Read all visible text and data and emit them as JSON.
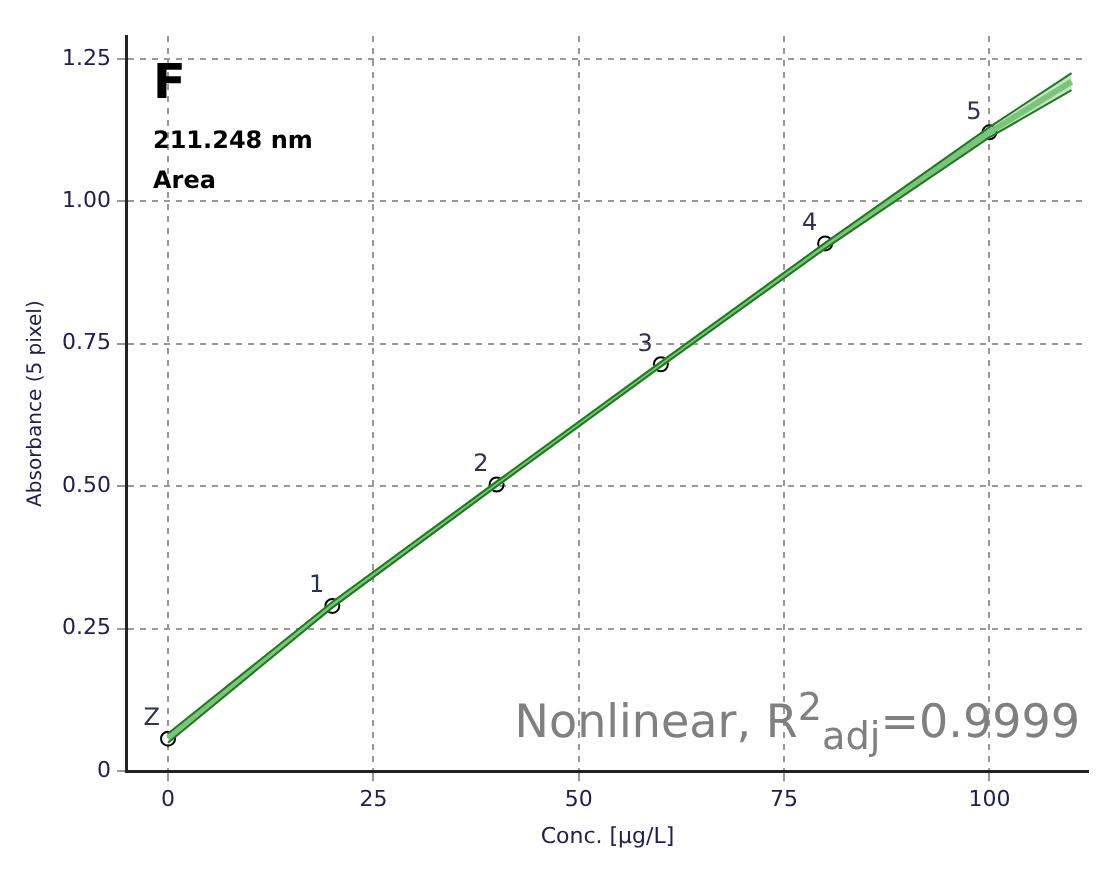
{
  "chart_data": {
    "type": "scatter",
    "title": "F",
    "subtitle": "211.248 nm",
    "xlabel": "Conc. [µg/L]",
    "ylabel": "Absorbance (5 pixel)",
    "xlim": [
      -5,
      112
    ],
    "xticks": [
      0,
      25,
      50,
      75,
      100
    ],
    "ylim": [
      0,
      1.29
    ],
    "yticks": [
      0,
      0.25,
      {
        "value": 0.5,
        "label": "0.50"
      },
      0.75,
      {
        "value": 1,
        "label": "1.00"
      },
      1.25
    ],
    "grid": true,
    "marker": "circle",
    "series": [
      {
        "type": "line",
        "marker": "none",
        "color": "#7cc47c",
        "x": [
          0,
          20,
          40,
          60,
          80,
          100,
          110
        ],
        "values": [
          0.058,
          0.292,
          0.504,
          0.714,
          0.922,
          1.121,
          1.21
        ],
        "lower": [
          0.05,
          0.287,
          0.5,
          0.71,
          0.917,
          1.112,
          1.195
        ],
        "upper": [
          0.066,
          0.297,
          0.508,
          0.718,
          0.927,
          1.13,
          1.225
        ]
      },
      {
        "color": "#000000",
        "x": [
          0,
          20,
          40,
          60,
          80,
          100
        ],
        "values": [
          0.057,
          0.29,
          0.503,
          0.714,
          0.926,
          1.121
        ]
      }
    ],
    "annotations": [
      "Area",
      "Nonlinear, R$^{2}$$_{adj}$=0.9999",
      {
        "text": "Z",
        "x": 0,
        "y": 0.057
      },
      {
        "text": "1",
        "x": 20,
        "y": 0.29
      },
      {
        "text": "2",
        "x": 40,
        "y": 0.503
      },
      {
        "text": "3",
        "x": 60,
        "y": 0.714
      },
      {
        "text": "4",
        "x": 80,
        "y": 0.926
      },
      {
        "text": "5",
        "x": 100,
        "y": 1.121
      }
    ]
  }
}
